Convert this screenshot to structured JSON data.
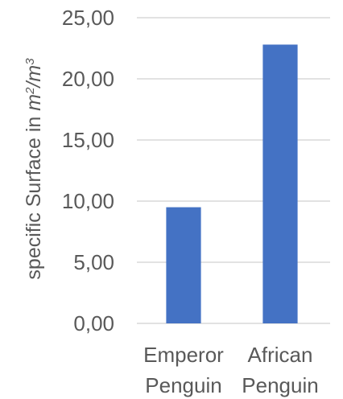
{
  "chart_data": {
    "type": "bar",
    "categories": [
      [
        "Emperor",
        "Penguin"
      ],
      [
        "African",
        "Penguin"
      ]
    ],
    "values": [
      9.5,
      22.8
    ],
    "title": "",
    "xlabel": "",
    "ylabel": {
      "main": "specific Surface in ",
      "unit_base_1": "m",
      "unit_sup_1": "2",
      "unit_sep": "/",
      "unit_base_2": "m",
      "unit_sup_2": "3"
    },
    "ylim": [
      0,
      25
    ],
    "yticks": [
      "0,00",
      "5,00",
      "10,00",
      "15,00",
      "20,00",
      "25,00"
    ],
    "grid": true,
    "legend": "none",
    "colors": {
      "bar": "#4472C4",
      "grid": "#D9D9D9",
      "text": "#595959"
    }
  }
}
